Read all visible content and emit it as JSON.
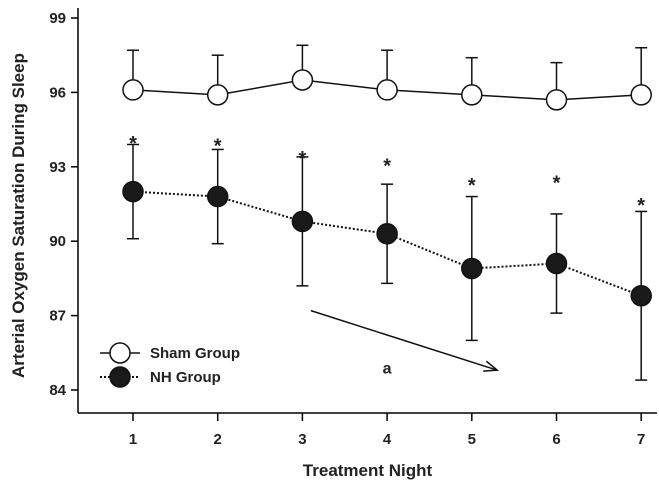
{
  "chart_data": {
    "type": "line",
    "xlabel": "Treatment Night",
    "ylabel": "Arterial Oxygen Saturation During Sleep",
    "x": [
      1,
      2,
      3,
      4,
      5,
      6,
      7
    ],
    "x_ticks": [
      "1",
      "2",
      "3",
      "4",
      "5",
      "6",
      "7"
    ],
    "ylim": [
      83,
      99.2
    ],
    "y_ticks": [
      84,
      87,
      90,
      93,
      96,
      99
    ],
    "y_tick_labels": [
      "84",
      "87",
      "90",
      "93",
      "96",
      "99"
    ],
    "grid": false,
    "legend_position": "bottom-left",
    "series": [
      {
        "name": "Sham Group",
        "marker": "open-circle",
        "line_style": "solid",
        "error_direction": "up",
        "values": [
          96.1,
          95.9,
          96.5,
          96.1,
          95.9,
          95.7,
          95.9
        ],
        "error": [
          1.6,
          1.6,
          1.4,
          1.6,
          1.5,
          1.5,
          1.9
        ]
      },
      {
        "name": "NH Group",
        "marker": "filled-circle",
        "line_style": "dotted",
        "error_direction": "both",
        "values": [
          92.0,
          91.8,
          90.8,
          90.3,
          88.9,
          89.1,
          87.8
        ],
        "error": [
          1.9,
          1.9,
          2.6,
          2.0,
          2.9,
          2.0,
          3.4
        ]
      }
    ],
    "significance_marks": [
      {
        "x": 1,
        "y": 94.0,
        "label": "*"
      },
      {
        "x": 2,
        "y": 93.9,
        "label": "*"
      },
      {
        "x": 3,
        "y": 93.4,
        "label": "*"
      },
      {
        "x": 4,
        "y": 93.1,
        "label": "*"
      },
      {
        "x": 5,
        "y": 92.3,
        "label": "*"
      },
      {
        "x": 6,
        "y": 92.4,
        "label": "*"
      },
      {
        "x": 7,
        "y": 91.5,
        "label": "*"
      }
    ],
    "trend_annotation": {
      "label": "a",
      "label_x": 4,
      "label_y": 84.9,
      "arrow_from": {
        "x": 3.1,
        "y": 87.2
      },
      "arrow_to": {
        "x": 5.3,
        "y": 84.8
      }
    },
    "colors": {
      "axis": "#000000",
      "text": "#222222",
      "sham_fill": "#ffffff",
      "nh_fill": "#1a1a1a",
      "line": "#111111"
    }
  }
}
